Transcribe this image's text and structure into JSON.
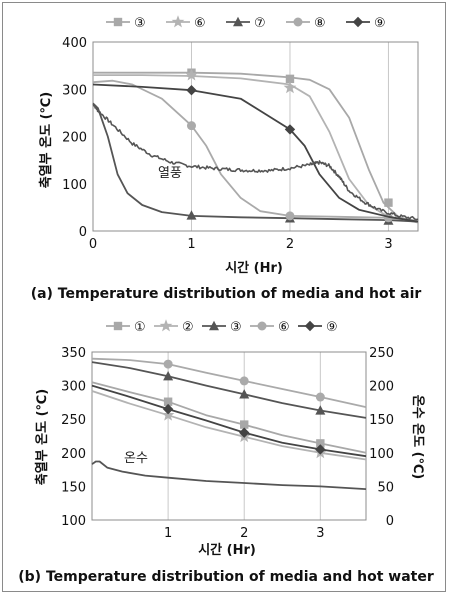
{
  "chart_data": [
    {
      "type": "line",
      "title": "(a) Temperature distribution of media and hot air",
      "xlabel": "시간 (Hr)",
      "ylabel": "축열부 온도 (℃)",
      "xlim": [
        0,
        3.3
      ],
      "ylim": [
        0,
        400
      ],
      "x_ticks": [
        0,
        1,
        2,
        3
      ],
      "y_ticks": [
        0,
        100,
        200,
        300,
        400
      ],
      "grid": "vertical",
      "legend": "top",
      "series": [
        {
          "name": "③",
          "color": "#a8a8a8",
          "marker": "square",
          "points": [
            [
              0,
              335
            ],
            [
              0.5,
              335
            ],
            [
              1,
              335
            ],
            [
              1.5,
              333
            ],
            [
              2,
              325
            ],
            [
              2.2,
              320
            ],
            [
              2.4,
              300
            ],
            [
              2.6,
              240
            ],
            [
              2.8,
              130
            ],
            [
              2.95,
              60
            ],
            [
              3.1,
              30
            ],
            [
              3.3,
              18
            ]
          ],
          "marked": [
            [
              1,
              335
            ],
            [
              2,
              322
            ],
            [
              3,
              60
            ]
          ]
        },
        {
          "name": "⑥",
          "color": "#b3b3b3",
          "marker": "star",
          "points": [
            [
              0,
              330
            ],
            [
              0.5,
              330
            ],
            [
              1,
              328
            ],
            [
              1.5,
              323
            ],
            [
              2,
              310
            ],
            [
              2.2,
              285
            ],
            [
              2.4,
              210
            ],
            [
              2.6,
              110
            ],
            [
              2.8,
              55
            ],
            [
              3,
              30
            ],
            [
              3.3,
              18
            ]
          ],
          "marked": [
            [
              1,
              330
            ],
            [
              2,
              303
            ]
          ]
        },
        {
          "name": "⑦",
          "color": "#555555",
          "marker": "triangle",
          "points": [
            [
              0,
              270
            ],
            [
              0.05,
              260
            ],
            [
              0.15,
              200
            ],
            [
              0.25,
              120
            ],
            [
              0.35,
              80
            ],
            [
              0.5,
              55
            ],
            [
              0.7,
              40
            ],
            [
              1,
              32
            ],
            [
              1.5,
              29
            ],
            [
              2,
              27
            ],
            [
              2.5,
              25
            ],
            [
              3,
              23
            ],
            [
              3.3,
              20
            ]
          ],
          "marked": [
            [
              1,
              33
            ],
            [
              2,
              27
            ],
            [
              3,
              22
            ]
          ]
        },
        {
          "name": "⑧",
          "color": "#aaaaaa",
          "marker": "circle",
          "points": [
            [
              0,
              315
            ],
            [
              0.2,
              318
            ],
            [
              0.4,
              310
            ],
            [
              0.7,
              280
            ],
            [
              1,
              223
            ],
            [
              1.15,
              180
            ],
            [
              1.3,
              120
            ],
            [
              1.5,
              70
            ],
            [
              1.7,
              42
            ],
            [
              2,
              32
            ],
            [
              2.5,
              30
            ],
            [
              3,
              28
            ],
            [
              3.3,
              22
            ]
          ],
          "marked": [
            [
              1,
              223
            ],
            [
              2,
              32
            ],
            [
              3,
              28
            ]
          ]
        },
        {
          "name": "⑨",
          "color": "#444444",
          "marker": "diamond",
          "points": [
            [
              0,
              310
            ],
            [
              0.5,
              305
            ],
            [
              1,
              298
            ],
            [
              1.5,
              280
            ],
            [
              2,
              215
            ],
            [
              2.15,
              180
            ],
            [
              2.3,
              120
            ],
            [
              2.5,
              70
            ],
            [
              2.7,
              45
            ],
            [
              3,
              30
            ],
            [
              3.3,
              20
            ]
          ],
          "marked": [
            [
              1,
              298
            ],
            [
              2,
              215
            ]
          ]
        },
        {
          "name": "열풍",
          "color": "#555555",
          "marker": "none",
          "noisy": true,
          "points": [
            [
              0,
              270
            ],
            [
              0.05,
              255
            ],
            [
              0.2,
              225
            ],
            [
              0.4,
              185
            ],
            [
              0.6,
              160
            ],
            [
              0.8,
              145
            ],
            [
              1,
              137
            ],
            [
              1.2,
              133
            ],
            [
              1.4,
              130
            ],
            [
              1.6,
              128
            ],
            [
              1.8,
              128
            ],
            [
              2,
              133
            ],
            [
              2.2,
              140
            ],
            [
              2.3,
              145
            ],
            [
              2.4,
              138
            ],
            [
              2.5,
              115
            ],
            [
              2.6,
              85
            ],
            [
              2.75,
              62
            ],
            [
              2.9,
              45
            ],
            [
              3.1,
              32
            ],
            [
              3.3,
              25
            ]
          ]
        }
      ],
      "annotations": [
        {
          "text": "열풍",
          "x": 0.72,
          "y": 120
        }
      ]
    },
    {
      "type": "line",
      "title": "(b) Temperature distribution of media and hot water",
      "xlabel": "시간 (Hr)",
      "ylabel": "축열부 온도 (℃)",
      "y2label": "온수 온도 (℃)",
      "xlim": [
        0,
        3.6
      ],
      "ylim": [
        100,
        350
      ],
      "y2lim": [
        0,
        250
      ],
      "x_ticks": [
        1,
        2,
        3
      ],
      "y_ticks": [
        100,
        150,
        200,
        250,
        300,
        350
      ],
      "y2_ticks": [
        0,
        50,
        100,
        150,
        200,
        250
      ],
      "grid": "vertical",
      "legend": "top",
      "series": [
        {
          "name": "①",
          "color": "#a8a8a8",
          "marker": "square",
          "points": [
            [
              0,
              305
            ],
            [
              0.5,
              290
            ],
            [
              1,
              276
            ],
            [
              1.5,
              256
            ],
            [
              2,
              242
            ],
            [
              2.5,
              226
            ],
            [
              3,
              214
            ],
            [
              3.6,
              200
            ]
          ],
          "marked": [
            [
              1,
              276
            ],
            [
              2,
              242
            ],
            [
              3,
              214
            ]
          ]
        },
        {
          "name": "②",
          "color": "#b3b3b3",
          "marker": "star",
          "points": [
            [
              0,
              292
            ],
            [
              0.5,
              273
            ],
            [
              1,
              256
            ],
            [
              1.5,
              238
            ],
            [
              2,
              224
            ],
            [
              2.5,
              210
            ],
            [
              3,
              200
            ],
            [
              3.6,
              190
            ]
          ],
          "marked": [
            [
              1,
              256
            ],
            [
              2,
              224
            ],
            [
              3,
              200
            ]
          ]
        },
        {
          "name": "③",
          "color": "#555555",
          "marker": "triangle",
          "points": [
            [
              0,
              335
            ],
            [
              0.5,
              326
            ],
            [
              1,
              314
            ],
            [
              1.5,
              300
            ],
            [
              2,
              287
            ],
            [
              2.5,
              274
            ],
            [
              3,
              263
            ],
            [
              3.6,
              252
            ]
          ],
          "marked": [
            [
              1,
              314
            ],
            [
              2,
              287
            ],
            [
              3,
              263
            ]
          ]
        },
        {
          "name": "⑥",
          "color": "#aaaaaa",
          "marker": "circle",
          "points": [
            [
              0,
              340
            ],
            [
              0.5,
              338
            ],
            [
              1,
              332
            ],
            [
              1.5,
              319
            ],
            [
              2,
              307
            ],
            [
              2.5,
              295
            ],
            [
              3,
              283
            ],
            [
              3.6,
              268
            ]
          ],
          "marked": [
            [
              1,
              332
            ],
            [
              2,
              307
            ],
            [
              3,
              283
            ]
          ]
        },
        {
          "name": "⑨",
          "color": "#444444",
          "marker": "diamond",
          "points": [
            [
              0,
              300
            ],
            [
              0.5,
              283
            ],
            [
              1,
              265
            ],
            [
              1.5,
              248
            ],
            [
              2,
              230
            ],
            [
              2.5,
              215
            ],
            [
              3,
              205
            ],
            [
              3.6,
              195
            ]
          ],
          "marked": [
            [
              1,
              265
            ],
            [
              2,
              230
            ],
            [
              3,
              205
            ]
          ]
        },
        {
          "name": "온수",
          "color": "#555555",
          "marker": "none",
          "axis": "y2",
          "points": [
            [
              0,
              83
            ],
            [
              0.05,
              87
            ],
            [
              0.1,
              87
            ],
            [
              0.2,
              78
            ],
            [
              0.4,
              72
            ],
            [
              0.7,
              66
            ],
            [
              1,
              63
            ],
            [
              1.5,
              58
            ],
            [
              2,
              55
            ],
            [
              2.5,
              52
            ],
            [
              3,
              50
            ],
            [
              3.6,
              46
            ]
          ]
        }
      ],
      "annotations": [
        {
          "text": "온수",
          "x": 0.45,
          "y": 180
        }
      ]
    }
  ]
}
